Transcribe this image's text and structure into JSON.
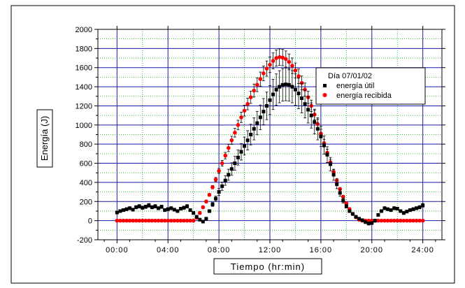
{
  "chart_data": {
    "type": "scatter",
    "title": "",
    "xlabel": "Tiempo (hr:min)",
    "ylabel": "Energía (J)",
    "xlim": [
      -1.5,
      25.5
    ],
    "ylim": [
      -200,
      2000
    ],
    "x_ticks": [
      0,
      4,
      8,
      12,
      16,
      20,
      24
    ],
    "x_tick_labels": [
      "00:00",
      "04:00",
      "08:00",
      "12:00",
      "16:00",
      "20:00",
      "24:00"
    ],
    "y_ticks": [
      -200,
      0,
      200,
      400,
      600,
      800,
      1000,
      1200,
      1400,
      1600,
      1800,
      2000
    ],
    "y_tick_labels": [
      "-200",
      "0",
      "200",
      "400",
      "600",
      "800",
      "1000",
      "1200",
      "1400",
      "1600",
      "1800",
      "2000"
    ],
    "grid": true,
    "legend_position": "top-right",
    "legend_title": "Día 07/01/02",
    "series": [
      {
        "name": "energía útil",
        "color": "#000000",
        "marker": "square",
        "error_bars": true,
        "points": [
          [
            0.0,
            85
          ],
          [
            0.25,
            100
          ],
          [
            0.5,
            110
          ],
          [
            0.75,
            120
          ],
          [
            1.0,
            130
          ],
          [
            1.25,
            115
          ],
          [
            1.5,
            140
          ],
          [
            1.75,
            150
          ],
          [
            2.0,
            135
          ],
          [
            2.25,
            145
          ],
          [
            2.5,
            160
          ],
          [
            2.75,
            140
          ],
          [
            3.0,
            150
          ],
          [
            3.25,
            130
          ],
          [
            3.5,
            145
          ],
          [
            3.75,
            110
          ],
          [
            4.0,
            120
          ],
          [
            4.25,
            130
          ],
          [
            4.5,
            115
          ],
          [
            4.75,
            100
          ],
          [
            5.0,
            125
          ],
          [
            5.25,
            135
          ],
          [
            5.5,
            150
          ],
          [
            5.75,
            110
          ],
          [
            6.0,
            80
          ],
          [
            6.25,
            40
          ],
          [
            6.5,
            10
          ],
          [
            6.75,
            -10
          ],
          [
            7.0,
            20
          ],
          [
            7.25,
            100
          ],
          [
            7.5,
            170
          ],
          [
            7.75,
            230
          ],
          [
            8.0,
            300
          ],
          [
            8.25,
            360
          ],
          [
            8.5,
            420
          ],
          [
            8.75,
            480
          ],
          [
            9.0,
            540
          ],
          [
            9.25,
            600
          ],
          [
            9.5,
            660
          ],
          [
            9.75,
            720
          ],
          [
            10.0,
            780
          ],
          [
            10.25,
            840
          ],
          [
            10.5,
            900
          ],
          [
            10.75,
            960
          ],
          [
            11.0,
            1020
          ],
          [
            11.25,
            1080
          ],
          [
            11.5,
            1140
          ],
          [
            11.75,
            1200
          ],
          [
            12.0,
            1260
          ],
          [
            12.25,
            1320
          ],
          [
            12.5,
            1370
          ],
          [
            12.75,
            1400
          ],
          [
            13.0,
            1420
          ],
          [
            13.25,
            1425
          ],
          [
            13.5,
            1420
          ],
          [
            13.75,
            1400
          ],
          [
            14.0,
            1370
          ],
          [
            14.25,
            1330
          ],
          [
            14.5,
            1280
          ],
          [
            14.75,
            1220
          ],
          [
            15.0,
            1160
          ],
          [
            15.25,
            1100
          ],
          [
            15.5,
            1030
          ],
          [
            15.75,
            960
          ],
          [
            16.0,
            880
          ],
          [
            16.25,
            790
          ],
          [
            16.5,
            690
          ],
          [
            16.75,
            590
          ],
          [
            17.0,
            480
          ],
          [
            17.25,
            380
          ],
          [
            17.5,
            290
          ],
          [
            17.75,
            210
          ],
          [
            18.0,
            150
          ],
          [
            18.25,
            100
          ],
          [
            18.5,
            70
          ],
          [
            18.75,
            40
          ],
          [
            19.0,
            20
          ],
          [
            19.25,
            5
          ],
          [
            19.5,
            -15
          ],
          [
            19.75,
            -30
          ],
          [
            20.0,
            -25
          ],
          [
            20.25,
            0
          ],
          [
            20.5,
            60
          ],
          [
            20.75,
            100
          ],
          [
            21.0,
            130
          ],
          [
            21.25,
            120
          ],
          [
            21.5,
            110
          ],
          [
            21.75,
            130
          ],
          [
            22.0,
            125
          ],
          [
            22.25,
            100
          ],
          [
            22.5,
            80
          ],
          [
            22.75,
            95
          ],
          [
            23.0,
            110
          ],
          [
            23.25,
            120
          ],
          [
            23.5,
            130
          ],
          [
            23.75,
            140
          ],
          [
            24.0,
            160
          ]
        ]
      },
      {
        "name": "energía recibida",
        "color": "#ff0000",
        "marker": "circle",
        "error_bars": true,
        "points": [
          [
            0.0,
            0
          ],
          [
            0.25,
            0
          ],
          [
            0.5,
            0
          ],
          [
            0.75,
            0
          ],
          [
            1.0,
            0
          ],
          [
            1.25,
            0
          ],
          [
            1.5,
            0
          ],
          [
            1.75,
            0
          ],
          [
            2.0,
            0
          ],
          [
            2.25,
            0
          ],
          [
            2.5,
            0
          ],
          [
            2.75,
            0
          ],
          [
            3.0,
            0
          ],
          [
            3.25,
            0
          ],
          [
            3.5,
            0
          ],
          [
            3.75,
            0
          ],
          [
            4.0,
            0
          ],
          [
            4.25,
            0
          ],
          [
            4.5,
            0
          ],
          [
            4.75,
            0
          ],
          [
            5.0,
            0
          ],
          [
            5.25,
            0
          ],
          [
            5.5,
            0
          ],
          [
            5.75,
            0
          ],
          [
            6.0,
            0
          ],
          [
            6.25,
            30
          ],
          [
            6.5,
            80
          ],
          [
            6.75,
            140
          ],
          [
            7.0,
            200
          ],
          [
            7.25,
            270
          ],
          [
            7.5,
            350
          ],
          [
            7.75,
            430
          ],
          [
            8.0,
            520
          ],
          [
            8.25,
            600
          ],
          [
            8.5,
            680
          ],
          [
            8.75,
            760
          ],
          [
            9.0,
            840
          ],
          [
            9.25,
            920
          ],
          [
            9.5,
            1000
          ],
          [
            9.75,
            1080
          ],
          [
            10.0,
            1150
          ],
          [
            10.25,
            1220
          ],
          [
            10.5,
            1290
          ],
          [
            10.75,
            1360
          ],
          [
            11.0,
            1420
          ],
          [
            11.25,
            1480
          ],
          [
            11.5,
            1540
          ],
          [
            11.75,
            1590
          ],
          [
            12.0,
            1630
          ],
          [
            12.25,
            1670
          ],
          [
            12.5,
            1700
          ],
          [
            12.75,
            1710
          ],
          [
            13.0,
            1705
          ],
          [
            13.25,
            1690
          ],
          [
            13.5,
            1660
          ],
          [
            13.75,
            1620
          ],
          [
            14.0,
            1570
          ],
          [
            14.25,
            1510
          ],
          [
            14.5,
            1440
          ],
          [
            14.75,
            1370
          ],
          [
            15.0,
            1290
          ],
          [
            15.25,
            1200
          ],
          [
            15.5,
            1110
          ],
          [
            15.75,
            1010
          ],
          [
            16.0,
            910
          ],
          [
            16.25,
            810
          ],
          [
            16.5,
            710
          ],
          [
            16.75,
            610
          ],
          [
            17.0,
            510
          ],
          [
            17.25,
            420
          ],
          [
            17.5,
            330
          ],
          [
            17.75,
            250
          ],
          [
            18.0,
            180
          ],
          [
            18.25,
            120
          ],
          [
            18.5,
            70
          ],
          [
            18.75,
            35
          ],
          [
            19.0,
            10
          ],
          [
            19.25,
            0
          ],
          [
            19.5,
            0
          ],
          [
            19.75,
            0
          ],
          [
            20.0,
            0
          ],
          [
            20.25,
            0
          ],
          [
            20.5,
            0
          ],
          [
            20.75,
            0
          ],
          [
            21.0,
            0
          ],
          [
            21.25,
            0
          ],
          [
            21.5,
            0
          ],
          [
            21.75,
            0
          ],
          [
            22.0,
            0
          ],
          [
            22.25,
            0
          ],
          [
            22.5,
            0
          ],
          [
            22.75,
            0
          ],
          [
            23.0,
            0
          ],
          [
            23.25,
            0
          ],
          [
            23.5,
            0
          ],
          [
            23.75,
            0
          ],
          [
            24.0,
            0
          ]
        ]
      }
    ]
  }
}
